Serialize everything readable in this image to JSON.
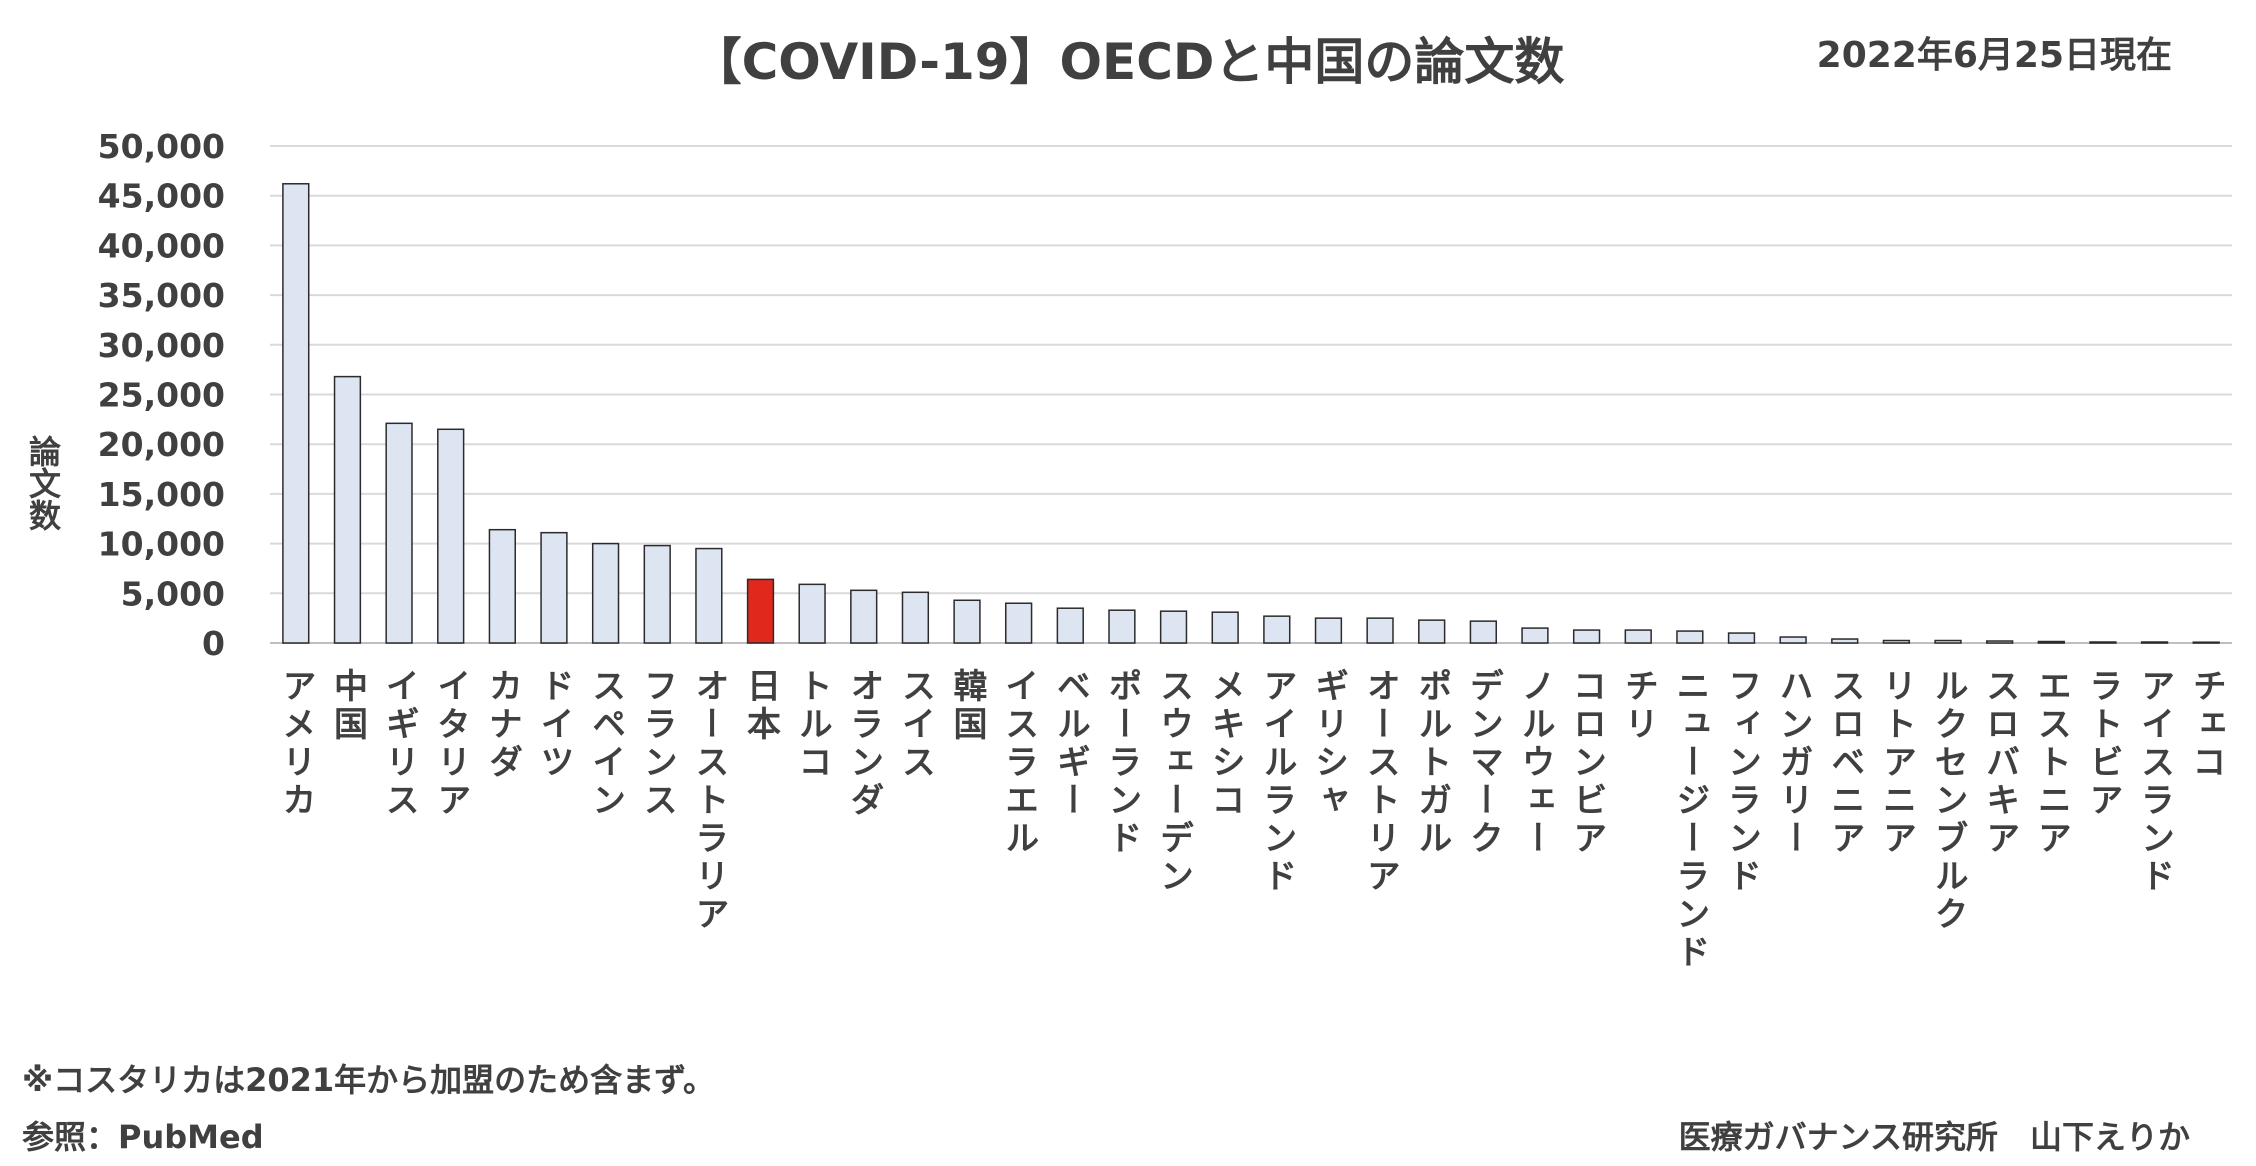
{
  "header": {
    "title": "【COVID-19】OECDと中国の論文数",
    "date": "2022年6月25日現在"
  },
  "footer": {
    "note": "※コスタリカは2021年から加盟のため含まず。",
    "source": "参照：PubMed",
    "credit": "医療ガバナンス研究所　山下えりか"
  },
  "colors": {
    "bar_fill": "#dde5f2",
    "bar_stroke": "#2b2b2b",
    "highlight_fill": "#e0281c",
    "gridline": "#d9d9d9",
    "text": "#404040"
  },
  "chart_data": {
    "type": "bar",
    "title": "【COVID-19】OECDと中国の論文数",
    "ylabel": "論文数",
    "xlabel": "",
    "ylim": [
      0,
      50000
    ],
    "yticks": [
      0,
      5000,
      10000,
      15000,
      20000,
      25000,
      30000,
      35000,
      40000,
      45000,
      50000
    ],
    "ytick_labels": [
      "0",
      "5,000",
      "10,000",
      "15,000",
      "20,000",
      "25,000",
      "30,000",
      "35,000",
      "40,000",
      "45,000",
      "50,000"
    ],
    "grid": true,
    "highlight": "日本",
    "categories": [
      "アメリカ",
      "中国",
      "イギリス",
      "イタリア",
      "カナダ",
      "ドイツ",
      "スペイン",
      "フランス",
      "オーストラリア",
      "日本",
      "トルコ",
      "オランダ",
      "スイス",
      "韓国",
      "イスラエル",
      "ベルギー",
      "ポーランド",
      "スウェーデン",
      "メキシコ",
      "アイルランド",
      "ギリシャ",
      "オーストリア",
      "ポルトガル",
      "デンマーク",
      "ノルウェー",
      "コロンビア",
      "チリ",
      "ニュージーランド",
      "フィンランド",
      "ハンガリー",
      "スロベニア",
      "リトアニア",
      "ルクセンブルク",
      "スロバキア",
      "エストニア",
      "ラトビア",
      "アイスランド",
      "チェコ"
    ],
    "values": [
      46200,
      26800,
      22100,
      21500,
      11400,
      11100,
      10000,
      9800,
      9500,
      6400,
      5900,
      5300,
      5100,
      4300,
      4000,
      3500,
      3300,
      3200,
      3100,
      2700,
      2500,
      2500,
      2300,
      2200,
      1500,
      1300,
      1300,
      1200,
      1000,
      600,
      400,
      250,
      250,
      200,
      150,
      100,
      100,
      80
    ]
  }
}
